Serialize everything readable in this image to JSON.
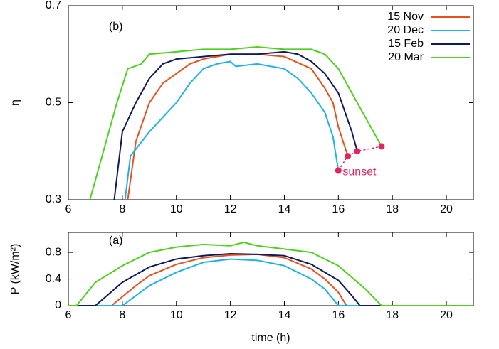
{
  "chart_data": [
    {
      "type": "line",
      "ylabel": "η",
      "annotation": "(b)",
      "xlim": [
        6,
        21
      ],
      "ylim": [
        0.3,
        0.7
      ],
      "xticks": [
        6,
        8,
        10,
        12,
        14,
        16,
        18,
        20
      ],
      "yticks": [
        0.3,
        0.5,
        0.7
      ],
      "legend": "top-right",
      "series": [
        {
          "name": "15 Nov",
          "color": "#e8511c",
          "x": [
            8.2,
            8.5,
            9,
            9.5,
            10,
            10.5,
            11,
            12,
            13,
            14,
            15,
            15.5,
            15.8,
            16.0,
            16.35
          ],
          "values": [
            0.3,
            0.42,
            0.5,
            0.54,
            0.56,
            0.58,
            0.59,
            0.6,
            0.6,
            0.595,
            0.57,
            0.53,
            0.5,
            0.45,
            0.39
          ]
        },
        {
          "name": "20 Dec",
          "color": "#1fb2e8",
          "x": [
            8.1,
            8.3,
            9,
            9.5,
            10,
            10.5,
            11,
            11.5,
            12,
            12.2,
            13,
            14,
            14.5,
            15,
            15.5,
            15.8,
            16.0
          ],
          "values": [
            0.3,
            0.39,
            0.44,
            0.47,
            0.5,
            0.54,
            0.57,
            0.58,
            0.585,
            0.575,
            0.58,
            0.57,
            0.55,
            0.52,
            0.48,
            0.43,
            0.36
          ]
        },
        {
          "name": "15 Feb",
          "color": "#0e1a5c",
          "x": [
            7.7,
            8,
            8.5,
            9,
            9.5,
            10,
            11,
            12,
            13,
            14,
            14.5,
            15,
            15.5,
            16,
            16.5,
            16.7
          ],
          "values": [
            0.3,
            0.44,
            0.5,
            0.55,
            0.58,
            0.59,
            0.595,
            0.6,
            0.6,
            0.605,
            0.6,
            0.585,
            0.56,
            0.52,
            0.44,
            0.4
          ]
        },
        {
          "name": "20 Mar",
          "color": "#4fd01f",
          "x": [
            6.8,
            7.2,
            7.8,
            8.2,
            8.7,
            9,
            10,
            11,
            12,
            13,
            14,
            15,
            15.5,
            16,
            16.5,
            17,
            17.6
          ],
          "values": [
            0.3,
            0.38,
            0.5,
            0.57,
            0.58,
            0.6,
            0.605,
            0.61,
            0.61,
            0.615,
            0.61,
            0.61,
            0.6,
            0.57,
            0.52,
            0.47,
            0.41
          ]
        }
      ],
      "sunset": {
        "label": "sunset",
        "color": "#e6245c",
        "x": [
          16.0,
          16.35,
          16.7,
          17.6
        ],
        "values": [
          0.36,
          0.39,
          0.4,
          0.41
        ]
      }
    },
    {
      "type": "line",
      "ylabel": "P (kW/m²)",
      "xlabel": "time (h)",
      "annotation": "(a)",
      "xlim": [
        6,
        21
      ],
      "ylim": [
        0,
        1.1
      ],
      "xticks": [
        6,
        8,
        10,
        12,
        14,
        16,
        18,
        20
      ],
      "yticks": [
        0,
        0.4,
        0.8
      ],
      "series": [
        {
          "color": "#e8511c",
          "x": [
            6,
            7.6,
            8.5,
            9,
            10,
            11,
            12,
            13,
            14,
            15,
            15.5,
            16,
            16.3,
            21
          ],
          "values": [
            0,
            0,
            0.3,
            0.45,
            0.62,
            0.72,
            0.76,
            0.77,
            0.72,
            0.55,
            0.4,
            0.2,
            0,
            0
          ]
        },
        {
          "color": "#1fb2e8",
          "x": [
            6,
            8,
            9,
            10,
            11,
            12,
            13,
            14,
            15,
            15.5,
            16,
            21
          ],
          "values": [
            0,
            0,
            0.3,
            0.5,
            0.65,
            0.7,
            0.68,
            0.6,
            0.4,
            0.25,
            0,
            0
          ]
        },
        {
          "color": "#0e1a5c",
          "x": [
            6,
            7,
            8,
            9,
            10,
            11,
            12,
            13,
            14,
            15,
            16,
            16.5,
            16.8,
            21
          ],
          "values": [
            0,
            0,
            0.35,
            0.58,
            0.7,
            0.75,
            0.78,
            0.77,
            0.75,
            0.62,
            0.38,
            0.15,
            0,
            0
          ]
        },
        {
          "color": "#4fd01f",
          "x": [
            6,
            6.3,
            7,
            8,
            9,
            10,
            11,
            12,
            12.5,
            13,
            14,
            15,
            16,
            17,
            17.6,
            21
          ],
          "values": [
            0,
            0,
            0.35,
            0.6,
            0.8,
            0.88,
            0.92,
            0.9,
            0.95,
            0.9,
            0.85,
            0.8,
            0.6,
            0.25,
            0,
            0
          ]
        }
      ]
    }
  ]
}
